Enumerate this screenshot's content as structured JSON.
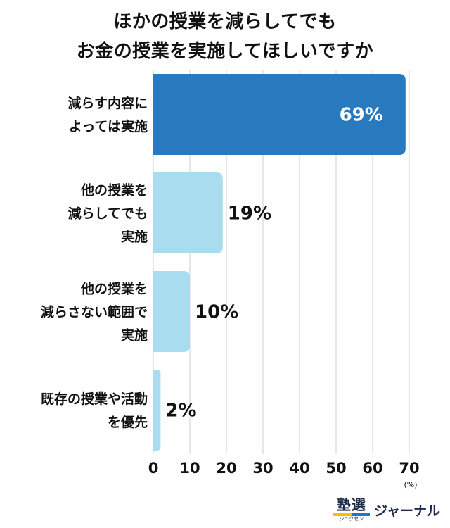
{
  "title": {
    "line1": "ほかの授業を減らしてでも",
    "line2": "お金の授業を実施してほしいですか"
  },
  "chart_data": {
    "type": "bar",
    "orientation": "horizontal",
    "categories": [
      [
        "減らす内容に",
        "よっては実施"
      ],
      [
        "他の授業を",
        "減らしてでも",
        "実施"
      ],
      [
        "他の授業を",
        "減らさない範囲で",
        "実施"
      ],
      [
        "既存の授業や活動",
        "を優先"
      ]
    ],
    "values": [
      69,
      19,
      10,
      2
    ],
    "value_labels": [
      "69%",
      "19%",
      "10%",
      "2%"
    ],
    "xlim": [
      0,
      70
    ],
    "xticks": [
      "0",
      "10",
      "20",
      "30",
      "40",
      "50",
      "60",
      "70"
    ],
    "unit_label": "(%)",
    "grid": true,
    "colors": {
      "highlight": "#2979bf",
      "normal": "#a9dcef",
      "grid": "#cfcfcf",
      "highlight_label": "#ffffff",
      "normal_label": "#111111"
    }
  },
  "logo": {
    "kanji": "塾選",
    "kana": "ジュクセン",
    "journal": "ジャーナル"
  }
}
